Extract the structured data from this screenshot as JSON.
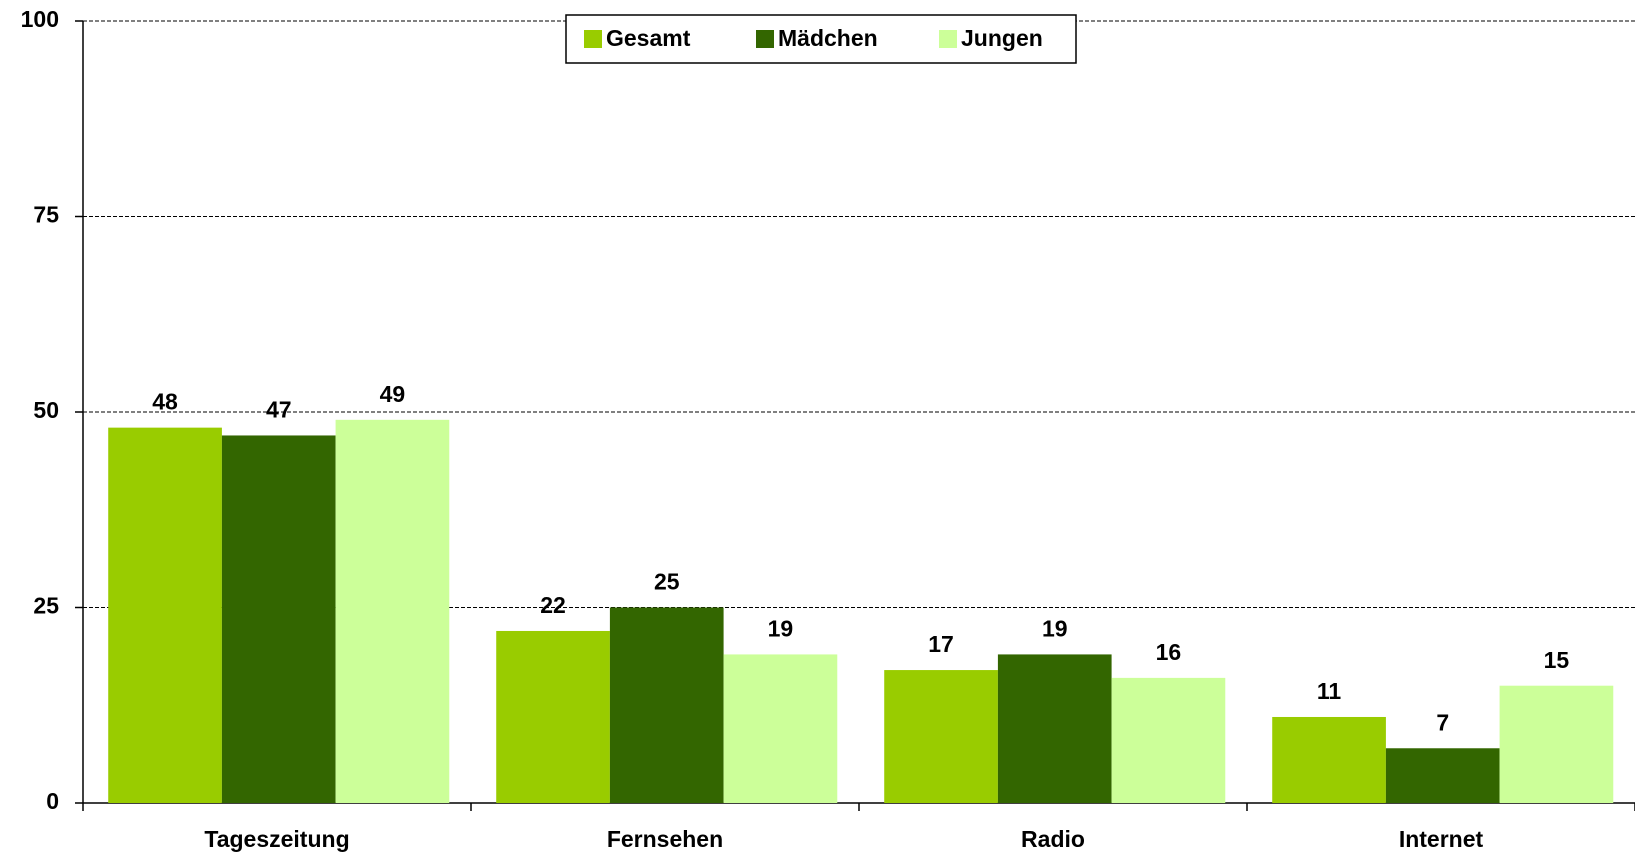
{
  "chart_data": {
    "type": "bar",
    "categories": [
      "Tageszeitung",
      "Fernsehen",
      "Radio",
      "Internet"
    ],
    "series": [
      {
        "name": "Gesamt",
        "color": "#99cc00",
        "values": [
          48,
          22,
          17,
          11
        ]
      },
      {
        "name": "Mädchen",
        "color": "#336600",
        "values": [
          47,
          25,
          19,
          7
        ]
      },
      {
        "name": "Jungen",
        "color": "#ccff99",
        "values": [
          49,
          19,
          16,
          15
        ]
      }
    ],
    "ylim": [
      0,
      100
    ],
    "yticks": [
      0,
      25,
      50,
      75,
      100
    ],
    "grid": true,
    "legend": "top"
  }
}
